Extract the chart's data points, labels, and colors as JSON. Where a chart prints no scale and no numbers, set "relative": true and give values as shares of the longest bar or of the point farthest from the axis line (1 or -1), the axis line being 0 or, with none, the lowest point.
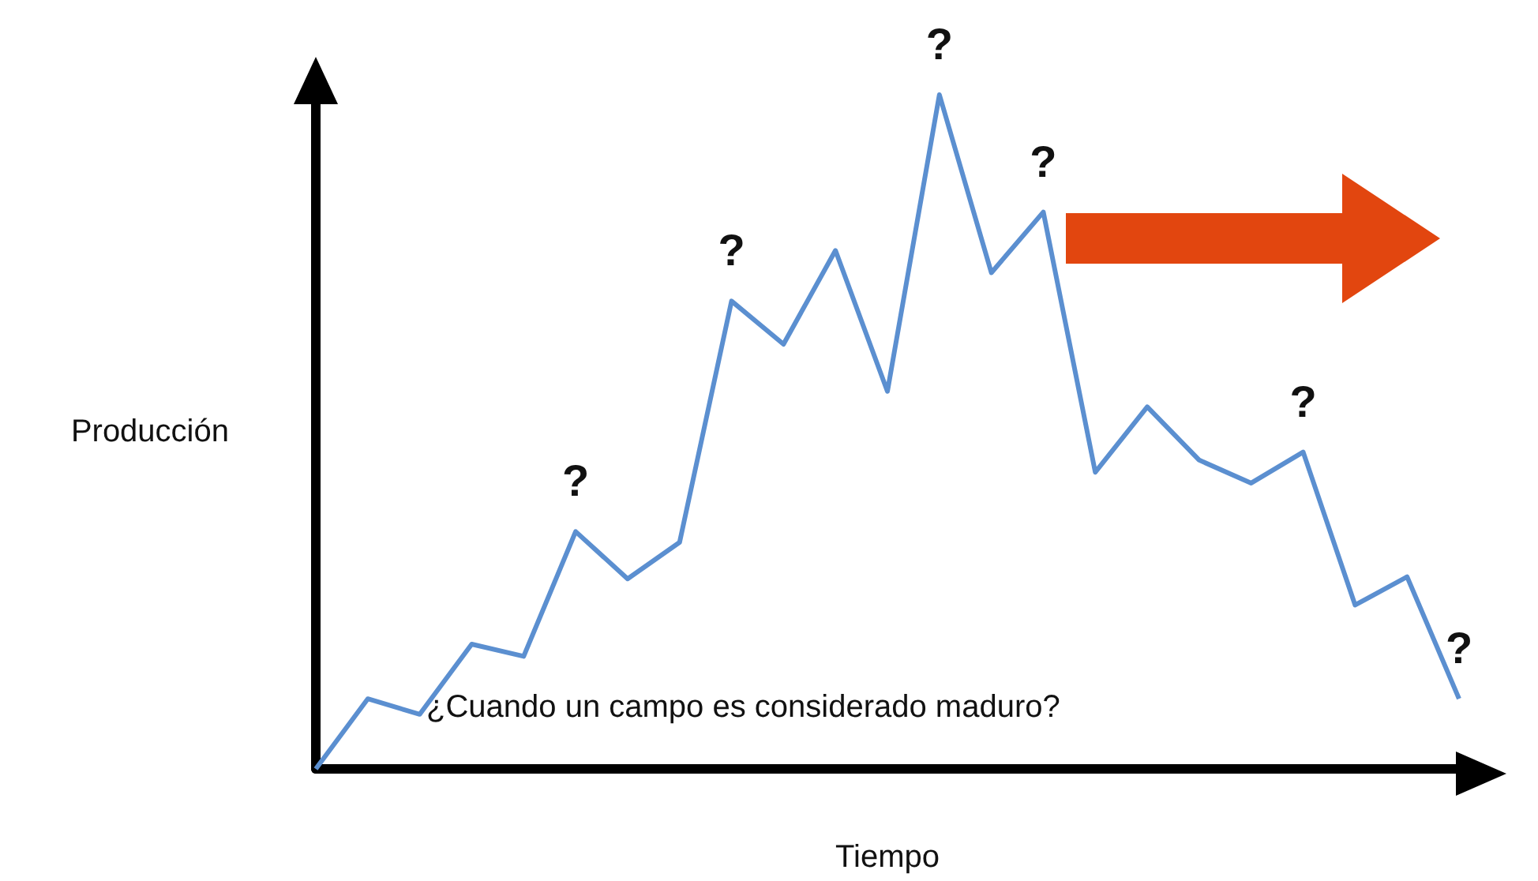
{
  "chart_data": {
    "type": "line",
    "relative": true,
    "xlabel": "Tiempo",
    "ylabel": "Producción",
    "grid": false,
    "marker": "none",
    "line_style": "solid",
    "categories": [
      null,
      null,
      null,
      null,
      null,
      null,
      null,
      null,
      null,
      null,
      null,
      null,
      null,
      null,
      null,
      null,
      null,
      null,
      null,
      null,
      null,
      null,
      null
    ],
    "series": [
      {
        "color": "#5b8fd0",
        "values": [
          0,
          0.104,
          0.081,
          0.185,
          0.167,
          0.352,
          0.282,
          0.336,
          0.694,
          0.63,
          0.769,
          0.56,
          1,
          0.736,
          0.826,
          0.44,
          0.537,
          0.458,
          0.424,
          0.47,
          0.243,
          0.285,
          0.104
        ]
      }
    ],
    "annotations": [
      "?",
      "?",
      "?",
      "?",
      "?",
      "?",
      "¿Cuando un campo es considerado maduro?"
    ]
  }
}
